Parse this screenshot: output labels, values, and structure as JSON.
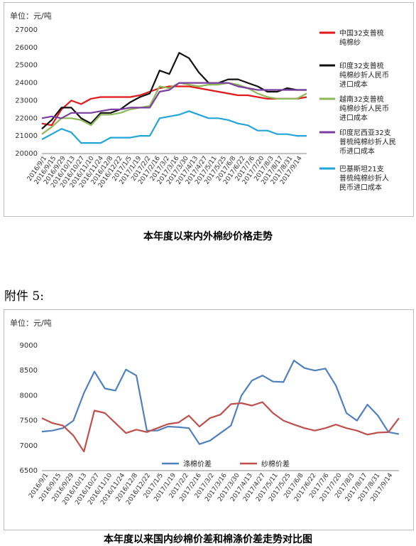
{
  "chart_data": [
    {
      "type": "line",
      "unit_label": "单位：元/吨",
      "caption": "本年度以来内外棉纱价格走势",
      "ylim": [
        20000,
        27000
      ],
      "y_ticks": [
        "27000",
        "26000",
        "25000",
        "24000",
        "23000",
        "22000",
        "21000",
        "20000"
      ],
      "x_tick_labels": [
        "2016/9/1",
        "2016/9/15",
        "2016/9/29",
        "2016/10/13",
        "2016/10/27",
        "2016/11/10",
        "2016/11/24",
        "2016/12/8",
        "2016/12/22",
        "2017/1/5",
        "2017/1/19",
        "2017/2/2",
        "2017/2/16",
        "2017/3/2",
        "2017/3/16",
        "2017/3/30",
        "2017/4/13",
        "2017/4/27",
        "2017/5/11",
        "2017/5/25",
        "2017/6/8",
        "2017/6/22",
        "2017/7/6",
        "2017/7/20",
        "2017/8/3",
        "2017/8/17",
        "2017/8/31",
        "2017/9/14"
      ],
      "legend_position": "right",
      "series": [
        {
          "name": "中国32支普梳纯棉纱",
          "color": "#e0191b",
          "values": [
            21700,
            21600,
            22500,
            23000,
            22800,
            23100,
            23200,
            23200,
            23200,
            23200,
            23300,
            23500,
            23700,
            23800,
            23800,
            23800,
            23700,
            23600,
            23500,
            23400,
            23300,
            23300,
            23200,
            23100,
            23100,
            23100,
            23100,
            23200
          ]
        },
        {
          "name": "印度32支普梳纯棉纱折人民币进口成本",
          "color": "#111111",
          "values": [
            21400,
            21900,
            22600,
            22600,
            22000,
            21700,
            22300,
            22300,
            22500,
            22900,
            23200,
            23400,
            24700,
            24500,
            25700,
            25400,
            24600,
            24000,
            24000,
            24200,
            24200,
            24000,
            23800,
            23500,
            23500,
            23700,
            23600,
            23600
          ]
        },
        {
          "name": "越南32支普梳纯棉纱折人民币进口成本",
          "color": "#8db857",
          "values": [
            21100,
            21500,
            22000,
            22000,
            21900,
            21600,
            22200,
            22200,
            22300,
            22500,
            22600,
            22700,
            23800,
            23700,
            24000,
            23900,
            23800,
            23900,
            23900,
            24000,
            23900,
            23700,
            23400,
            23200,
            23100,
            23100,
            23100,
            23400
          ]
        },
        {
          "name": "印度尼西亚32支普梳纯棉纱折人民币进口成本",
          "color": "#7b3fa0",
          "values": [
            22000,
            22100,
            22000,
            22300,
            22300,
            22300,
            22400,
            22500,
            22500,
            22600,
            22600,
            22600,
            23500,
            23600,
            24000,
            24000,
            24000,
            24000,
            24000,
            24000,
            23800,
            23700,
            23600,
            23600,
            23600,
            23600,
            23600,
            23600
          ]
        },
        {
          "name": "巴基斯坦21支普梳纯棉纱折人民币进口成本",
          "color": "#22a6d8",
          "values": [
            20800,
            21100,
            21400,
            21200,
            20600,
            20600,
            20600,
            20900,
            20900,
            20900,
            21000,
            21000,
            22000,
            22100,
            22200,
            22400,
            22200,
            22000,
            22000,
            21900,
            21700,
            21600,
            21300,
            21300,
            21100,
            21100,
            21000,
            21000
          ]
        }
      ]
    },
    {
      "type": "line",
      "unit_label": "单位：元/吨",
      "caption": "本年度以来国内纱棉价差和棉涤价差走势对比图",
      "ylim": [
        6500,
        9000
      ],
      "y_ticks": [
        "9000",
        "8500",
        "8000",
        "7500",
        "7000",
        "6500"
      ],
      "x_tick_labels": [
        "2016/9/1",
        "2016/9/15",
        "2016/9/29",
        "2016/10/13",
        "2016/10/27",
        "2016/11/10",
        "2016/11/24",
        "2016/12/8",
        "2016/12/22",
        "2017/1/5",
        "2017/1/19",
        "2017/2/2",
        "2017/2/16",
        "2017/3/2",
        "2017/3/16",
        "2017/3/30",
        "2017/4/13",
        "2017/4/27",
        "2017/5/11",
        "2017/5/25",
        "2017/6/8",
        "2017/6/22",
        "2017/7/6",
        "2017/7/20",
        "2017/8/3",
        "2017/8/17",
        "2017/8/31",
        "2017/9/14"
      ],
      "legend_position": "bottom-center",
      "series": [
        {
          "name": "涤棉价差",
          "color": "#4f81bd",
          "values": [
            7280,
            7300,
            7350,
            7500,
            8050,
            8480,
            8140,
            8100,
            8520,
            8400,
            7300,
            7300,
            7380,
            7370,
            7350,
            7030,
            7100,
            7250,
            7400,
            8000,
            8300,
            8400,
            8280,
            8270,
            8700,
            8550,
            8500,
            8540,
            8200,
            7650,
            7500,
            7820,
            7600,
            7270,
            7230
          ]
        },
        {
          "name": "纱棉价差",
          "color": "#c0504d",
          "values": [
            7550,
            7450,
            7400,
            7200,
            6880,
            7700,
            7650,
            7450,
            7250,
            7320,
            7270,
            7350,
            7430,
            7460,
            7600,
            7380,
            7550,
            7620,
            7830,
            7850,
            7800,
            7870,
            7650,
            7500,
            7420,
            7350,
            7300,
            7350,
            7420,
            7350,
            7300,
            7220,
            7260,
            7270,
            7550
          ]
        }
      ]
    }
  ],
  "appendix_label": "附件 5:"
}
